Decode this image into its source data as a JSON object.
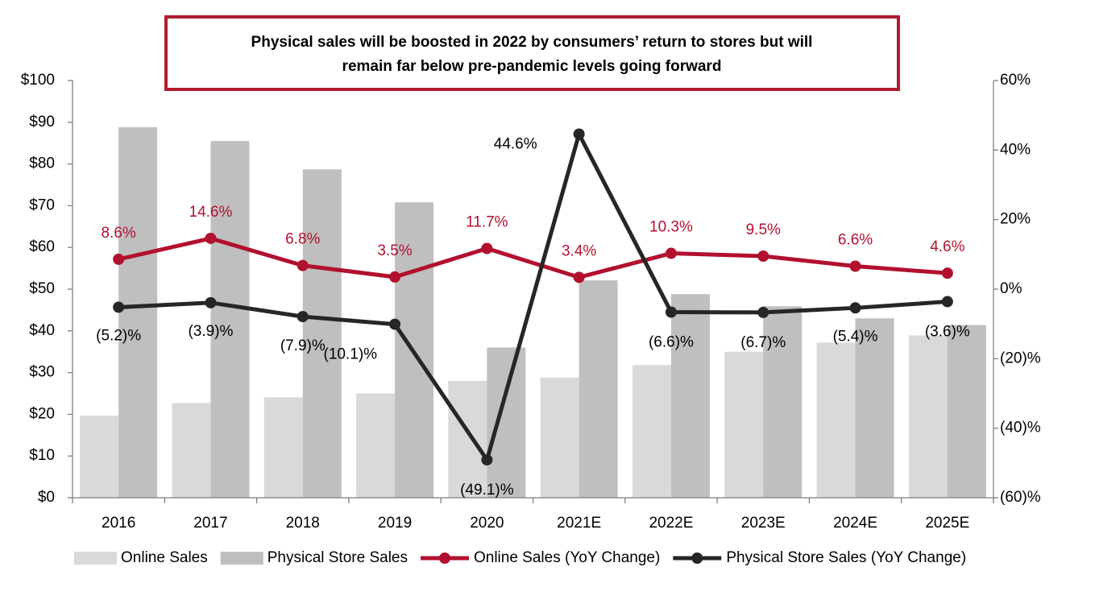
{
  "chart_data": {
    "type": "bar-line",
    "title": [
      "Physical sales will be boosted in 2022 by consumers’ return to stores but will",
      "remain far below pre-pandemic levels going forward"
    ],
    "categories": [
      "2016",
      "2017",
      "2018",
      "2019",
      "2020",
      "2021E",
      "2022E",
      "2023E",
      "2024E",
      "2025E"
    ],
    "series": [
      {
        "name": "Online Sales",
        "type": "bar",
        "color": "#d9d9d9",
        "values": [
          19.7,
          22.7,
          24.1,
          25.0,
          28.0,
          28.8,
          31.8,
          35.0,
          37.2,
          38.9
        ]
      },
      {
        "name": "Physical Store Sales",
        "type": "bar",
        "color": "#bfbfbf",
        "values": [
          88.8,
          85.5,
          78.7,
          70.8,
          36.0,
          52.1,
          48.8,
          45.9,
          43.0,
          41.4
        ]
      },
      {
        "name": "Online Sales (YoY Change)",
        "type": "line",
        "axis": "y2",
        "color": "#b2102f",
        "values": [
          8.6,
          14.6,
          6.8,
          3.5,
          11.7,
          3.4,
          10.3,
          9.5,
          6.6,
          4.6
        ],
        "value_labels": [
          "8.6%",
          "14.6%",
          "6.8%",
          "3.5%",
          "11.7%",
          "3.4%",
          "10.3%",
          "9.5%",
          "6.6%",
          "4.6%"
        ]
      },
      {
        "name": "Physical Store Sales (YoY Change)",
        "type": "line",
        "axis": "y2",
        "color": "#262626",
        "values": [
          -5.2,
          -3.9,
          -7.9,
          -10.1,
          -49.1,
          44.6,
          -6.6,
          -6.7,
          -5.4,
          -3.6
        ],
        "value_labels": [
          "(5.2)%",
          "(3.9)%",
          "(7.9)%",
          "(10.1)%",
          "(49.1)%",
          "44.6%",
          "(6.6)%",
          "(6.7)%",
          "(5.4)%",
          "(3.6)%"
        ]
      }
    ],
    "ylim": [
      0,
      100
    ],
    "yticks": [
      {
        "value": 0,
        "label": "$0"
      },
      {
        "value": 10,
        "label": "$10"
      },
      {
        "value": 20,
        "label": "$20"
      },
      {
        "value": 30,
        "label": "$30"
      },
      {
        "value": 40,
        "label": "$40"
      },
      {
        "value": 50,
        "label": "$50"
      },
      {
        "value": 60,
        "label": "$60"
      },
      {
        "value": 70,
        "label": "$70"
      },
      {
        "value": 80,
        "label": "$80"
      },
      {
        "value": 90,
        "label": "$90"
      },
      {
        "value": 100,
        "label": "$100"
      }
    ],
    "y2lim": [
      -60,
      60
    ],
    "y2ticks": [
      {
        "value": -60,
        "label": "(60)%"
      },
      {
        "value": -40,
        "label": "(40)%"
      },
      {
        "value": -20,
        "label": "(20)%"
      },
      {
        "value": 0,
        "label": "0%"
      },
      {
        "value": 20,
        "label": "20%"
      },
      {
        "value": 40,
        "label": "40%"
      },
      {
        "value": 60,
        "label": "60%"
      }
    ],
    "legend": "bottom"
  }
}
